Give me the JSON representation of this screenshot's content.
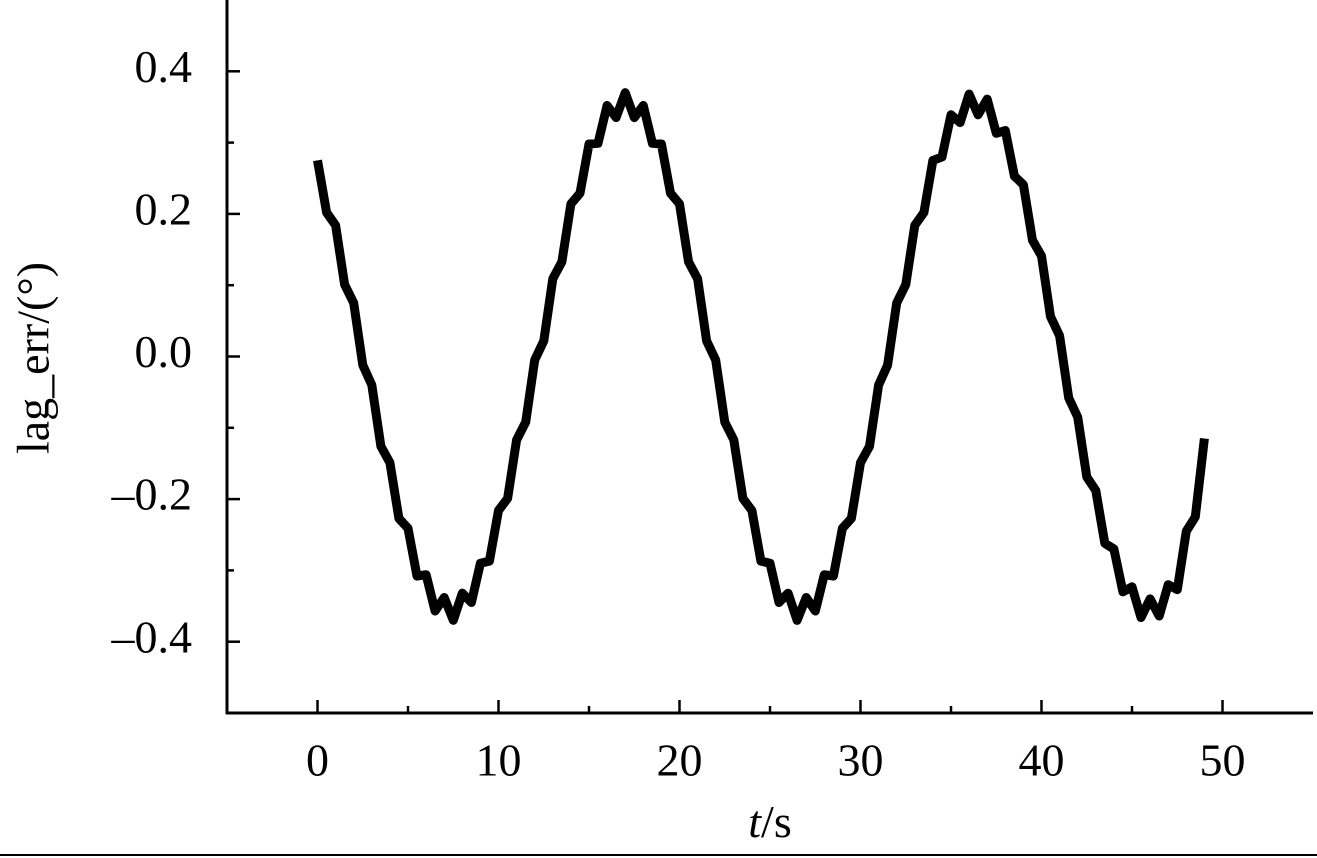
{
  "chart_data": {
    "type": "line",
    "ylabel": "lag_err/(°)",
    "xlabel": {
      "symbol": "t",
      "unit": "/s"
    },
    "color": "#000000",
    "x": [
      0,
      0.5,
      1,
      1.5,
      2,
      2.5,
      3,
      3.5,
      4,
      4.5,
      5,
      5.5,
      6,
      6.5,
      7,
      7.5,
      8,
      8.5,
      9,
      9.5,
      10,
      10.5,
      11,
      11.5,
      12,
      12.5,
      13,
      13.5,
      14,
      14.5,
      15,
      15.5,
      16,
      16.5,
      17,
      17.5,
      18,
      18.5,
      19,
      19.5,
      20,
      20.5,
      21,
      21.5,
      22,
      22.5,
      23,
      23.5,
      24,
      24.5,
      25,
      25.5,
      26,
      26.5,
      27,
      27.5,
      28,
      28.5,
      29,
      29.5,
      30,
      30.5,
      31,
      31.5,
      32,
      32.5,
      33,
      33.5,
      34,
      34.5,
      35,
      35.5,
      36,
      36.5,
      37,
      37.5,
      38,
      38.5,
      39,
      39.5,
      40,
      40.5,
      41,
      41.5,
      42,
      42.5,
      43,
      43.5,
      44,
      44.5,
      45,
      45.5,
      46,
      46.5,
      47,
      47.5,
      48,
      48.5,
      49
    ],
    "values": [
      0.275,
      0.202,
      0.184,
      0.101,
      0.075,
      -0.012,
      -0.04,
      -0.126,
      -0.149,
      -0.227,
      -0.241,
      -0.308,
      -0.306,
      -0.357,
      -0.338,
      -0.37,
      -0.332,
      -0.345,
      -0.29,
      -0.287,
      -0.216,
      -0.199,
      -0.117,
      -0.092,
      -0.005,
      0.022,
      0.109,
      0.133,
      0.214,
      0.229,
      0.298,
      0.299,
      0.352,
      0.335,
      0.37,
      0.335,
      0.352,
      0.299,
      0.298,
      0.229,
      0.214,
      0.133,
      0.109,
      0.022,
      -0.005,
      -0.092,
      -0.117,
      -0.199,
      -0.216,
      -0.287,
      -0.29,
      -0.345,
      -0.332,
      -0.37,
      -0.338,
      -0.357,
      -0.306,
      -0.308,
      -0.241,
      -0.227,
      -0.149,
      -0.126,
      -0.04,
      -0.012,
      0.075,
      0.101,
      0.184,
      0.202,
      0.275,
      0.28,
      0.339,
      0.328,
      0.368,
      0.339,
      0.361,
      0.313,
      0.317,
      0.253,
      0.241,
      0.163,
      0.141,
      0.056,
      0.029,
      -0.058,
      -0.085,
      -0.169,
      -0.188,
      -0.262,
      -0.27,
      -0.33,
      -0.323,
      -0.366,
      -0.34,
      -0.364,
      -0.32,
      -0.327,
      -0.245,
      -0.225,
      -0.115
    ],
    "xlim": [
      -5,
      55
    ],
    "xticks": [
      0,
      10,
      20,
      30,
      40,
      50
    ],
    "xminorticks": [
      5,
      15,
      25,
      35,
      45
    ],
    "ylim": [
      -0.5,
      0.5
    ],
    "yticks": [
      {
        "value": -0.4,
        "label": "–0.4"
      },
      {
        "value": -0.2,
        "label": "–0.2"
      },
      {
        "value": 0,
        "label": "0.0"
      },
      0.2,
      0.4
    ],
    "yminorticks": [
      -0.3,
      -0.1,
      0.1,
      0.3
    ]
  }
}
